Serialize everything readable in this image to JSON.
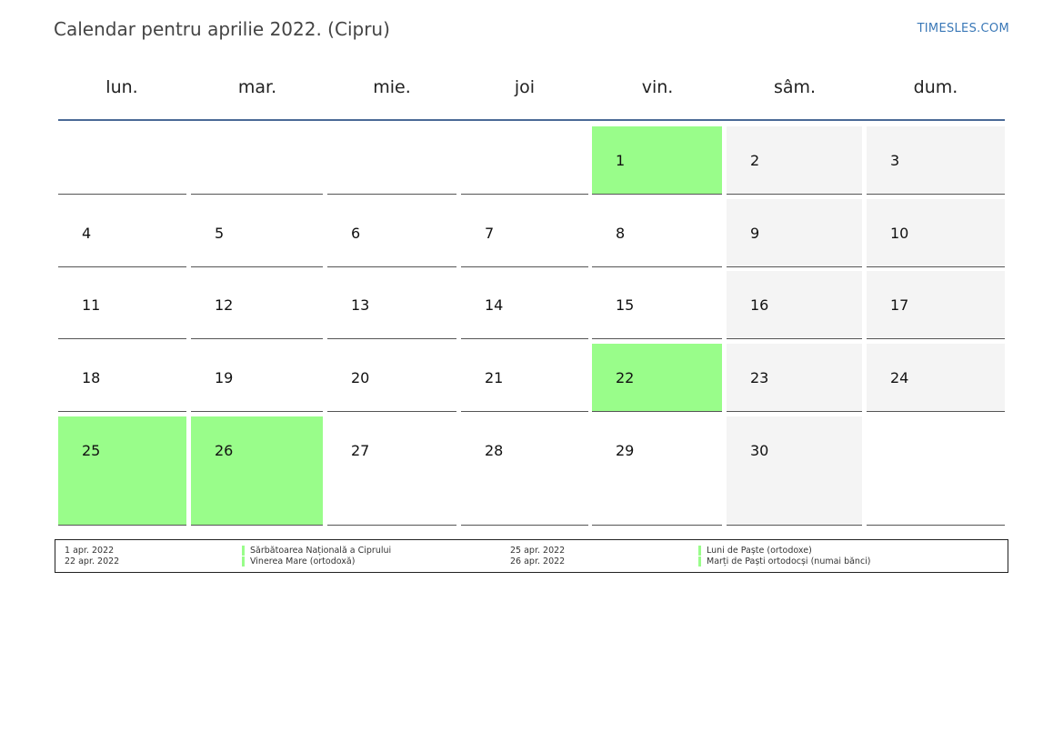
{
  "header": {
    "title": "Calendar pentru aprilie 2022. (Cipru)",
    "site": "TIMESLES.COM"
  },
  "weekdays": [
    "lun.",
    "mar.",
    "mie.",
    "joi",
    "vin.",
    "sâm.",
    "dum."
  ],
  "weeks": [
    [
      null,
      null,
      null,
      null,
      "1",
      "2",
      "3"
    ],
    [
      "4",
      "5",
      "6",
      "7",
      "8",
      "9",
      "10"
    ],
    [
      "11",
      "12",
      "13",
      "14",
      "15",
      "16",
      "17"
    ],
    [
      "18",
      "19",
      "20",
      "21",
      "22",
      "23",
      "24"
    ],
    [
      "25",
      "26",
      "27",
      "28",
      "29",
      "30",
      null
    ]
  ],
  "holidays": [
    "1",
    "22",
    "25",
    "26"
  ],
  "colors": {
    "holiday": "#99fd8a",
    "weekend": "#f4f4f4",
    "rule": "#4a6a96",
    "site": "#3a78b7"
  },
  "legend": [
    {
      "date": "1 apr. 2022",
      "name": "Sărbătoarea Națională a Ciprului"
    },
    {
      "date": "22 apr. 2022",
      "name": "Vinerea Mare (ortodoxă)"
    },
    {
      "date": "25 apr. 2022",
      "name": "Luni de Paște (ortodoxe)"
    },
    {
      "date": "26 apr. 2022",
      "name": "Marți de Paști ortodocși (numai bănci)"
    }
  ]
}
